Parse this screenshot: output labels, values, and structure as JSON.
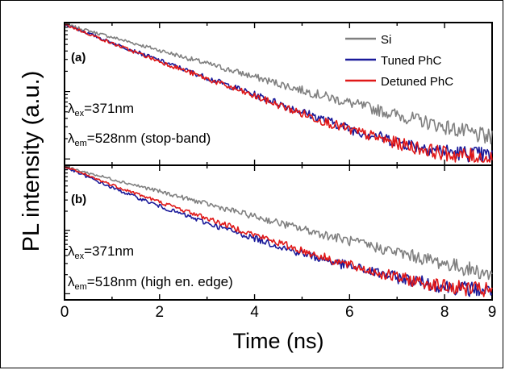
{
  "chart_data": {
    "type": "line",
    "xlabel": "Time (ns)",
    "ylabel": "PL intensity (a.u.)",
    "xlim": [
      0,
      9
    ],
    "x_ticks": [
      "0",
      "2",
      "4",
      "6",
      "8",
      "9"
    ],
    "y_scale": "log",
    "legend": {
      "position": "top-right",
      "entries": [
        "Si",
        "Tuned PhC",
        "Detuned PhC"
      ]
    },
    "colors": {
      "Si": "#808080",
      "Tuned PhC": "#1a1a9a",
      "Detuned PhC": "#e01818"
    },
    "panels": [
      {
        "label": "(a)",
        "annotation_1": {
          "main": "λ",
          "sub": "ex",
          "rest": "=371nm"
        },
        "annotation_2": {
          "main": "λ",
          "sub": "em",
          "rest": "=528nm (stop-band)"
        },
        "series": [
          {
            "name": "Si",
            "x": [
              0,
              1,
              2,
              3,
              4,
              5,
              6,
              7,
              8,
              9
            ],
            "y": [
              1.0,
              0.64,
              0.41,
              0.26,
              0.165,
              0.105,
              0.068,
              0.045,
              0.03,
              0.02
            ]
          },
          {
            "name": "Tuned PhC",
            "x": [
              0,
              1,
              2,
              3,
              4,
              5,
              6,
              7,
              8,
              9
            ],
            "y": [
              1.0,
              0.53,
              0.29,
              0.16,
              0.09,
              0.05,
              0.028,
              0.018,
              0.013,
              0.011
            ]
          },
          {
            "name": "Detuned PhC",
            "x": [
              0,
              1,
              2,
              3,
              4,
              5,
              6,
              7,
              8,
              9
            ],
            "y": [
              1.0,
              0.52,
              0.28,
              0.155,
              0.085,
              0.047,
              0.027,
              0.017,
              0.012,
              0.01
            ]
          }
        ]
      },
      {
        "label": "(b)",
        "annotation_1": {
          "main": "λ",
          "sub": "ex",
          "rest": "=371nm"
        },
        "annotation_2": {
          "main": "λ",
          "sub": "em",
          "rest": "=518nm (high en. edge)"
        },
        "series": [
          {
            "name": "Si",
            "x": [
              0,
              1,
              2,
              3,
              4,
              5,
              6,
              7,
              8,
              9
            ],
            "y": [
              1.0,
              0.64,
              0.41,
              0.26,
              0.165,
              0.105,
              0.068,
              0.045,
              0.03,
              0.02
            ]
          },
          {
            "name": "Tuned PhC",
            "x": [
              0,
              1,
              2,
              3,
              4,
              5,
              6,
              7,
              8,
              9
            ],
            "y": [
              1.0,
              0.47,
              0.24,
              0.13,
              0.075,
              0.043,
              0.027,
              0.018,
              0.013,
              0.011
            ]
          },
          {
            "name": "Detuned PhC",
            "x": [
              0,
              1,
              2,
              3,
              4,
              5,
              6,
              7,
              8,
              9
            ],
            "y": [
              1.0,
              0.52,
              0.28,
              0.155,
              0.085,
              0.048,
              0.028,
              0.018,
              0.013,
              0.011
            ]
          }
        ]
      }
    ]
  }
}
